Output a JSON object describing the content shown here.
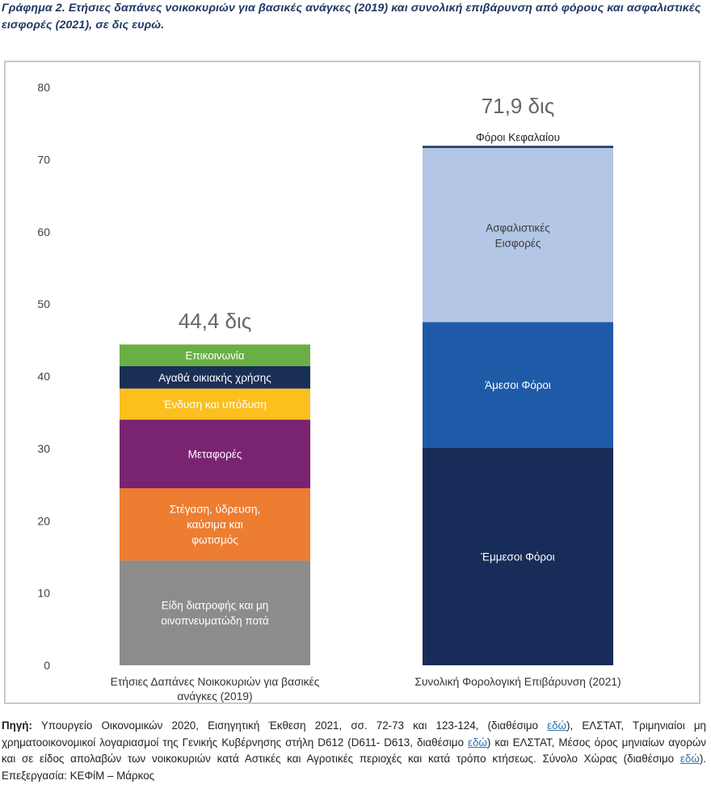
{
  "title": "Γράφημα 2. Ετήσιες δαπάνες νοικοκυριών για βασικές ανάγκες (2019) και συνολική επιβάρυνση από φόρους και ασφαλιστικές εισφορές (2021), σε δις ευρώ.",
  "source": {
    "label": "Πηγή:",
    "part1": "Υπουργείο Οικονομικών 2020, Εισηγητική Έκθεση 2021, σσ. 72-73 και 123-124, (διαθέσιμο",
    "link1": "εδώ",
    "part2": "), ΕΛΣΤΑΤ, Τριμηνιαίοι μη χρηματοοικονομικοί λογαριασμοί της Γενικής Κυβέρνησης στήλη D612 (D611- D613, διαθέσιμο",
    "link2": "εδώ",
    "part3": ") και ΕΛΣΤΑΤ, Μέσος όρος μηνιαίων αγορών και σε είδος απολαβών των νοικοκυριών κατά Αστικές και Αγροτικές περιοχές και κατά τρόπο κτήσεως. Σύνολο Χώρας (διαθέσιμο",
    "link3": "εδώ",
    "part4": "). Επεξεργασία: ΚΕΦίΜ – Μάρκος"
  },
  "chart_data": {
    "type": "bar",
    "stacked": true,
    "ylim": [
      0,
      80
    ],
    "yticks": [
      0,
      10,
      20,
      30,
      40,
      50,
      60,
      70,
      80
    ],
    "categories": [
      "Ετήσιες Δαπάνες Νοικοκυριών για βασικές ανάγκες (2019)",
      "Συνολική Φορολογική Επιβάρυνση (2021)"
    ],
    "category_label_lines": [
      [
        "Ετήσιες Δαπάνες Νοικοκυριών για βασικές",
        "ανάγκες (2019)"
      ],
      [
        "Συνολική Φορολογική Επιβάρυνση (2021)"
      ]
    ],
    "totals": [
      "44,4 δις",
      "71,9 δις"
    ],
    "bars": [
      {
        "segments": [
          {
            "name": "Είδη διατροφής και μη οινοπνευματώδη ποτά",
            "lines": [
              "Είδη διατροφής και μη",
              "οινοπνευματώδη ποτά"
            ],
            "value": 14.5,
            "color": "#8c8c8c"
          },
          {
            "name": "Στέγαση, ύδρευση, καύσιμα και φωτισμός",
            "lines": [
              "Στέγαση, ύδρευση,",
              "καύσιμα και",
              "φωτισμός"
            ],
            "value": 10.0,
            "color": "#ed7d31"
          },
          {
            "name": "Μεταφορές",
            "lines": [
              "Μεταφορές"
            ],
            "value": 9.5,
            "color": "#7a2471"
          },
          {
            "name": "Ένδυση και υπόδυση",
            "lines": [
              "Ένδυση και υπόδυση"
            ],
            "value": 4.3,
            "color": "#fbbf1e"
          },
          {
            "name": "Αγαθά οικιακής χρήσης",
            "lines": [
              "Αγαθά οικιακής χρήσης"
            ],
            "value": 3.1,
            "color": "#1a2f56"
          },
          {
            "name": "Επικοινωνία",
            "lines": [
              "Επικοινωνία"
            ],
            "value": 3.0,
            "color": "#6aaf45"
          }
        ]
      },
      {
        "segments": [
          {
            "name": "Έμμεσοι Φόροι",
            "lines": [
              "Έμμεσοι Φόροι"
            ],
            "value": 30.1,
            "color": "#172c58"
          },
          {
            "name": "Άμεσοι Φόροι",
            "lines": [
              "Άμεσοι Φόροι"
            ],
            "value": 17.4,
            "color": "#1f5aa8"
          },
          {
            "name": "Ασφαλιστικές Εισφορές",
            "lines": [
              "Ασφαλιστικές",
              "Εισφορές"
            ],
            "value": 24.1,
            "color": "#b4c6e6"
          },
          {
            "name": "Φόροι Κεφαλαίου",
            "lines": [
              "Φόροι Κεφαλαίου"
            ],
            "value": 0.3,
            "color": "#1f3864",
            "label_above": true
          }
        ]
      }
    ]
  }
}
